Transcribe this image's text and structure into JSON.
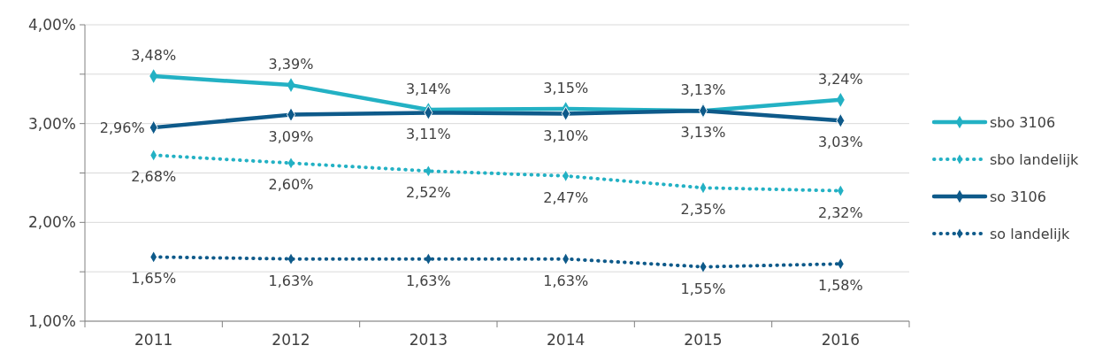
{
  "chart_data": {
    "type": "line",
    "categories": [
      "2011",
      "2012",
      "2013",
      "2014",
      "2015",
      "2016"
    ],
    "ylim": [
      1,
      4
    ],
    "yticks": [
      {
        "value": 1,
        "label": "1,00%"
      },
      {
        "value": 1.5,
        "label": null
      },
      {
        "value": 2,
        "label": "2,00%"
      },
      {
        "value": 2.5,
        "label": null
      },
      {
        "value": 3,
        "label": "3,00%"
      },
      {
        "value": 3.5,
        "label": null
      },
      {
        "value": 4,
        "label": "4,00%"
      }
    ],
    "grid": "y",
    "legend": "right",
    "marker": "diamond",
    "series": [
      {
        "name": "sbo 3106",
        "color": "#23b1c4",
        "line_style": "solid",
        "values": [
          3.48,
          3.39,
          3.14,
          3.15,
          3.13,
          3.24
        ],
        "value_labels": [
          "3,48%",
          "3,39%",
          "3,14%",
          "3,15%",
          "3,13%",
          "3,24%"
        ]
      },
      {
        "name": "sbo landelijk",
        "color": "#23b1c4",
        "line_style": "dotted",
        "values": [
          2.68,
          2.6,
          2.52,
          2.47,
          2.35,
          2.32
        ],
        "value_labels": [
          "2,68%",
          "2,60%",
          "2,52%",
          "2,47%",
          "2,35%",
          "2,32%"
        ]
      },
      {
        "name": "so 3106",
        "color": "#0e5a8a",
        "line_style": "solid",
        "values": [
          2.96,
          3.09,
          3.11,
          3.1,
          3.13,
          3.03
        ],
        "value_labels": [
          "2,96%",
          "3,09%",
          "3,11%",
          "3,10%",
          "3,13%",
          "3,03%"
        ]
      },
      {
        "name": "so landelijk",
        "color": "#0e5a8a",
        "line_style": "dotted",
        "values": [
          1.65,
          1.63,
          1.63,
          1.63,
          1.55,
          1.58
        ],
        "value_labels": [
          "1,65%",
          "1,63%",
          "1,63%",
          "1,63%",
          "1,55%",
          "1,58%"
        ]
      }
    ]
  }
}
